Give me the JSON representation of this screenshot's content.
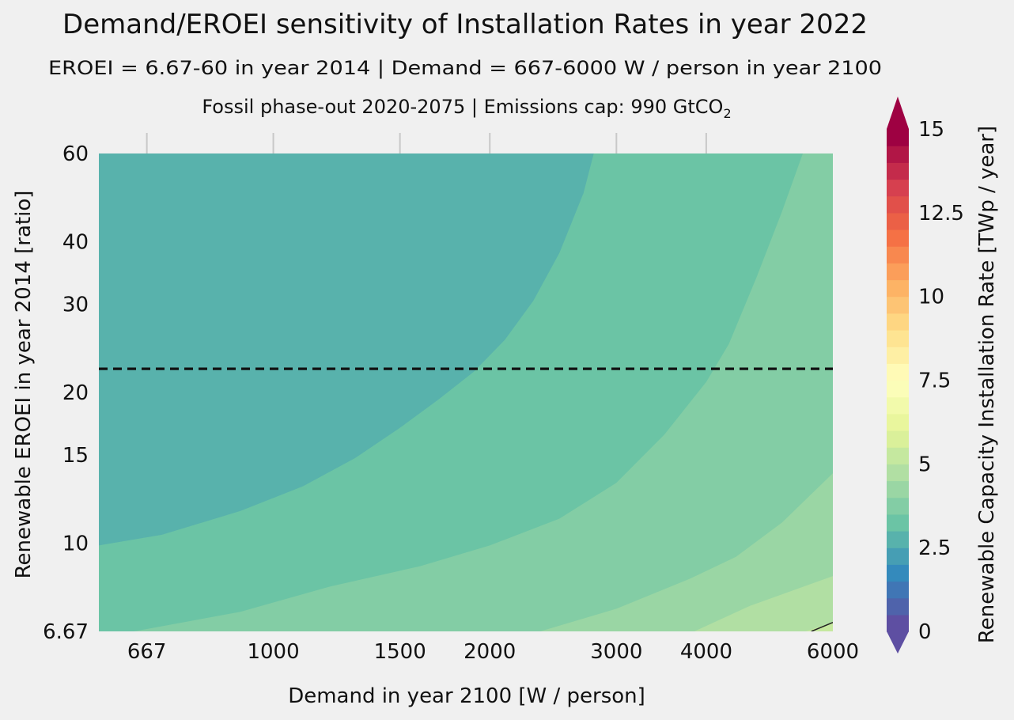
{
  "chart_data": {
    "type": "contour",
    "title": "Demand/EROEI sensitivity of Installation Rates in year 2022",
    "subtitle1": "EROEI = 6.67-60 in year 2014   |   Demand = 667-6000 W / person in year 2100",
    "subtitle2_prefix": "Fossil phase-out 2020-2075  |   Emissions cap: 990 GtCO",
    "subtitle2_sub": "2",
    "xlabel": "Demand in year 2100 [W / person]",
    "ylabel": "Renewable EROEI in year 2014 [ratio]",
    "xscale": "log",
    "yscale": "log",
    "xlim": [
      572,
      6000
    ],
    "ylim": [
      6.67,
      60
    ],
    "xticks": [
      667,
      1000,
      1500,
      2000,
      3000,
      4000,
      6000
    ],
    "xtick_labels": [
      "667",
      "1000",
      "1500",
      "2000",
      "3000",
      "4000",
      "6000"
    ],
    "yticks": [
      6.67,
      10,
      15,
      20,
      30,
      40,
      60
    ],
    "ytick_labels": [
      "6.67",
      "10",
      "15",
      "20",
      "30",
      "40",
      "60"
    ],
    "reference_line": {
      "axis": "y",
      "value": 22.3,
      "style": "dashed",
      "color": "#111111"
    },
    "contour_levels": [
      0,
      0.5,
      1,
      1.5,
      2,
      2.5,
      3,
      3.5,
      4,
      4.5,
      5,
      5.5,
      6,
      6.5,
      7,
      7.5,
      8,
      8.5,
      9,
      9.5,
      10,
      10.5,
      11,
      11.5,
      12,
      12.5,
      13,
      13.5,
      14,
      14.5,
      15
    ],
    "contour_boundaries": [
      {
        "between": [
          2.5,
          3.0
        ],
        "points": [
          [
            572,
            9.9
          ],
          [
            700,
            10.4
          ],
          [
            900,
            11.6
          ],
          [
            1100,
            13.0
          ],
          [
            1300,
            14.8
          ],
          [
            1500,
            17.0
          ],
          [
            1700,
            19.4
          ],
          [
            1900,
            22.0
          ],
          [
            2100,
            25.5
          ],
          [
            2300,
            30.5
          ],
          [
            2500,
            38.0
          ],
          [
            2700,
            50.0
          ],
          [
            2790,
            60.0
          ]
        ]
      },
      {
        "between": [
          3.0,
          3.5
        ],
        "points": [
          [
            640,
            6.67
          ],
          [
            900,
            7.3
          ],
          [
            1200,
            8.2
          ],
          [
            1600,
            9.0
          ],
          [
            2000,
            9.9
          ],
          [
            2500,
            11.2
          ],
          [
            3000,
            13.2
          ],
          [
            3500,
            16.5
          ],
          [
            4000,
            21.0
          ],
          [
            4300,
            25.0
          ],
          [
            4700,
            34.0
          ],
          [
            5100,
            46.0
          ],
          [
            5450,
            60.0
          ]
        ]
      },
      {
        "between": [
          3.5,
          4.0
        ],
        "points": [
          [
            2350,
            6.67
          ],
          [
            3000,
            7.4
          ],
          [
            3800,
            8.5
          ],
          [
            4400,
            9.4
          ],
          [
            5100,
            11.0
          ],
          [
            6000,
            13.8
          ]
        ]
      },
      {
        "between": [
          4.0,
          4.5
        ],
        "points": [
          [
            3850,
            6.67
          ],
          [
            4600,
            7.5
          ],
          [
            6000,
            8.6
          ]
        ]
      },
      {
        "between": [
          4.5,
          5.0
        ],
        "points": [
          [
            5500,
            6.67
          ],
          [
            6000,
            6.95
          ]
        ]
      }
    ],
    "contour_line": {
      "level": 5.0,
      "points": [
        [
          5600,
          6.67
        ],
        [
          6000,
          6.95
        ]
      ]
    },
    "colorbar": {
      "label": "Renewable Capacity Installation Rate [TWp / year]",
      "ticks": [
        0,
        2.5,
        5,
        7.5,
        10,
        12.5,
        15
      ],
      "tick_labels": [
        "0",
        "2.5",
        "5",
        "7.5",
        "10",
        "12.5",
        "15"
      ],
      "range": [
        0,
        15
      ],
      "extend": "both",
      "colormap": "Spectral_r"
    },
    "grid": {
      "x": "top ticks only",
      "y": "none"
    }
  }
}
